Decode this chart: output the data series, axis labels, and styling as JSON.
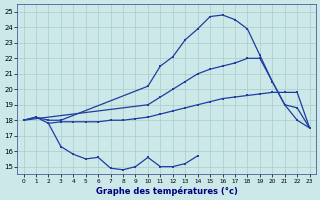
{
  "xlabel": "Graphe des températures (°c)",
  "ylim": [
    14.5,
    25.5
  ],
  "yticks": [
    15,
    16,
    17,
    18,
    19,
    20,
    21,
    22,
    23,
    24,
    25
  ],
  "xticks": [
    0,
    1,
    2,
    3,
    4,
    5,
    6,
    7,
    8,
    9,
    10,
    11,
    12,
    13,
    14,
    15,
    16,
    17,
    18,
    19,
    20,
    21,
    22,
    23
  ],
  "line_color": "#1e3ea0",
  "bg_color": "#cce8e8",
  "grid_color": "#aacccc",
  "lines": [
    {
      "x": [
        0,
        1,
        2,
        3,
        10,
        11,
        12,
        13,
        14,
        15,
        16,
        17,
        18,
        19,
        20,
        21,
        22,
        23
      ],
      "y": [
        18.0,
        18.2,
        18.0,
        18.0,
        20.2,
        21.5,
        22.1,
        23.2,
        23.9,
        24.7,
        24.8,
        24.5,
        23.9,
        22.2,
        20.5,
        19.0,
        18.0,
        17.5
      ]
    },
    {
      "x": [
        0,
        10,
        11,
        12,
        13,
        14,
        15,
        16,
        17,
        18,
        19,
        20,
        21,
        22,
        23
      ],
      "y": [
        18.0,
        19.0,
        19.5,
        20.0,
        20.5,
        21.0,
        21.3,
        21.5,
        21.7,
        22.0,
        22.0,
        20.5,
        19.0,
        18.8,
        17.5
      ]
    },
    {
      "x": [
        0,
        1,
        2,
        3,
        4,
        5,
        6,
        7,
        8,
        9,
        10,
        11,
        12,
        13,
        14,
        15,
        16,
        17,
        18,
        19,
        20,
        21,
        22,
        23
      ],
      "y": [
        18.0,
        18.2,
        17.8,
        17.9,
        17.9,
        17.9,
        17.9,
        18.0,
        18.0,
        18.1,
        18.2,
        18.4,
        18.6,
        18.8,
        19.0,
        19.2,
        19.4,
        19.5,
        19.6,
        19.7,
        19.8,
        19.8,
        19.8,
        17.5
      ]
    },
    {
      "x": [
        2,
        3,
        4,
        5,
        6,
        7,
        8,
        9,
        10,
        11,
        12,
        13,
        14
      ],
      "y": [
        17.8,
        16.3,
        15.8,
        15.5,
        15.6,
        14.9,
        14.8,
        15.0,
        15.6,
        15.0,
        15.0,
        15.2,
        15.7
      ]
    }
  ]
}
